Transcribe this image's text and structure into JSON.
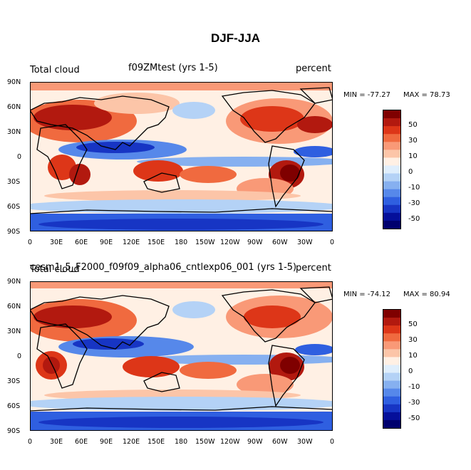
{
  "title": "DJF-JJA",
  "panels": [
    {
      "left_label": "Total cloud",
      "center_label": "f09ZMtest (yrs 1-5)",
      "right_label": "percent",
      "min_label": "MIN = -77.27",
      "max_label": "MAX =  78.73"
    },
    {
      "left_label": "Total cloud",
      "center_label": "cesm1_5_F2000_f09f09_alpha06_cntlexp06_001 (yrs 1-5)",
      "right_label": "percent",
      "min_label": "MIN = -74.12",
      "max_label": "MAX =  80.94"
    }
  ],
  "lat_labels": [
    "90N",
    "60N",
    "30N",
    "0",
    "30S",
    "60S",
    "90S"
  ],
  "lon_labels": [
    "0",
    "30E",
    "60E",
    "90E",
    "120E",
    "150E",
    "180",
    "150W",
    "120W",
    "90W",
    "60W",
    "30W",
    "0"
  ],
  "colorbar": {
    "labels": [
      "50",
      "30",
      "10",
      "0",
      "-10",
      "-30",
      "-50"
    ],
    "colors": [
      "#7f0000",
      "#b2190f",
      "#dd3618",
      "#f06a3f",
      "#f99977",
      "#fcc5a8",
      "#fff0e4",
      "#dfeefc",
      "#b4d2f6",
      "#86b0f0",
      "#5688ea",
      "#2f5fe0",
      "#1735c4",
      "#050f9a",
      "#00006e"
    ]
  }
}
